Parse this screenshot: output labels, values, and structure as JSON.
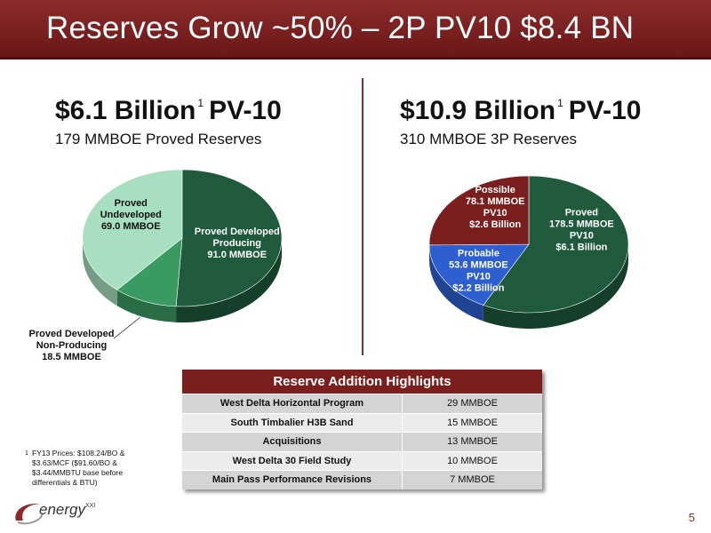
{
  "slide": {
    "title": "Reserves Grow ~50% – 2P PV10 $8.4 BN",
    "page_number": "5"
  },
  "left": {
    "headline": "$6.1 Billion",
    "headline_sup": "1",
    "headline_suffix": "PV-10",
    "subhead": "179 MMBOE Proved Reserves"
  },
  "right": {
    "headline": "$10.9 Billion",
    "headline_sup": "1",
    "headline_suffix": "PV-10",
    "subhead": "310 MMBOE 3P Reserves"
  },
  "chart_data": [
    {
      "type": "pie",
      "slices": [
        {
          "lines": [
            "Proved Developed",
            "Producing",
            "91.0 MMBOE"
          ],
          "value": 91.0,
          "color": "#1f5a3c",
          "label_color": "#ffffff"
        },
        {
          "lines": [
            "Proved Developed",
            "Non-Producing",
            "18.5 MMBOE"
          ],
          "value": 18.5,
          "color": "#3a9a62",
          "label_color": "#111111"
        },
        {
          "lines": [
            "Proved",
            "Undeveloped",
            "69.0 MMBOE"
          ],
          "value": 69.0,
          "color": "#a8dfc0",
          "label_color": "#111111"
        }
      ]
    },
    {
      "type": "pie",
      "slices": [
        {
          "lines": [
            "Proved",
            "178.5 MMBOE",
            "PV10",
            "$6.1 Billion"
          ],
          "value": 178.5,
          "color": "#1f5a3c",
          "label_color": "#ffffff"
        },
        {
          "lines": [
            "Probable",
            "53.6 MMBOE",
            "PV10",
            "$2.2 Billion"
          ],
          "value": 53.6,
          "color": "#2e5fd0",
          "label_color": "#ffffff"
        },
        {
          "lines": [
            "Possible",
            "78.1 MMBOE",
            "PV10",
            "$2.6 Billion"
          ],
          "value": 78.1,
          "color": "#7a1e1e",
          "label_color": "#ffffff"
        }
      ]
    }
  ],
  "highlights": {
    "title": "Reserve Addition Highlights",
    "rows": [
      {
        "item": "West Delta Horizontal Program",
        "value": "29 MMBOE"
      },
      {
        "item": "South Timbalier H3B Sand",
        "value": "15 MMBOE"
      },
      {
        "item": "Acquisitions",
        "value": "13 MMBOE"
      },
      {
        "item": "West Delta 30 Field Study",
        "value": "10 MMBOE"
      },
      {
        "item": "Main Pass Performance Revisions",
        "value": "7 MMBOE"
      }
    ]
  },
  "footnote": {
    "mark": "1",
    "text": "FY13 Prices: $108.24/BO & $3.63/MCF ($91.60/BO & $3.44/MMBTU base before differentials & BTU)"
  },
  "logo": {
    "word": "energy",
    "suffix": "XXI"
  }
}
